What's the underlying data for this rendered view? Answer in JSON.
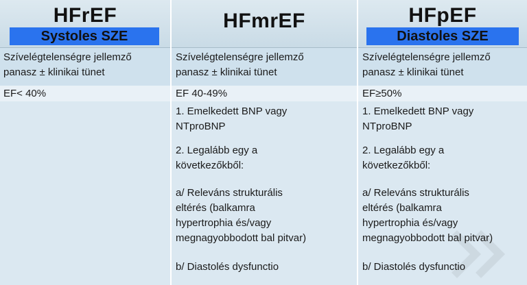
{
  "columns": [
    {
      "title": "HFrEF",
      "subtitle": "Systoles SZE",
      "complaint": [
        "Szívelégtelenségre jellemző",
        "panasz ± klinikai tünet"
      ],
      "ef": "EF< 40%",
      "criteria": []
    },
    {
      "title": "HFmrEF",
      "subtitle": "",
      "complaint": [
        "Szívelégtelenségre jellemző",
        "panasz ± klinikai tünet"
      ],
      "ef": "EF 40-49%",
      "criteria": [
        [
          "1. Emelkedett BNP vagy",
          "NTproBNP"
        ],
        [
          "2. Legalább egy a",
          "következőkből:"
        ],
        [
          "a/ Releváns strukturális",
          "eltérés (balkamra",
          "hypertrophia és/vagy",
          "megnagyobbodott bal pitvar)"
        ],
        [
          "b/ Diastolés dysfunctio"
        ]
      ]
    },
    {
      "title": "HFpEF",
      "subtitle": "Diastoles SZE",
      "complaint": [
        "Szívelégtelenségre jellemző",
        "panasz ± klinikai tünet"
      ],
      "ef": "EF≥50%",
      "criteria": [
        [
          "1. Emelkedett BNP vagy",
          "NTproBNP"
        ],
        [
          "2. Legalább egy a",
          "következőkből:"
        ],
        [
          "a/ Releváns strukturális",
          "eltérés (balkamra",
          "hypertrophia és/vagy",
          "megnagyobbodott bal pitvar)"
        ],
        [
          "b/ Diastolés dysfunctio"
        ]
      ]
    }
  ],
  "colors": {
    "header_bg": "#cfdfe9",
    "subtitle_bg": "#2a73ee",
    "band_complaint": "#cfe1ed",
    "band_ef": "#e9f1f7",
    "band_criteria": "#dbe8f1"
  }
}
